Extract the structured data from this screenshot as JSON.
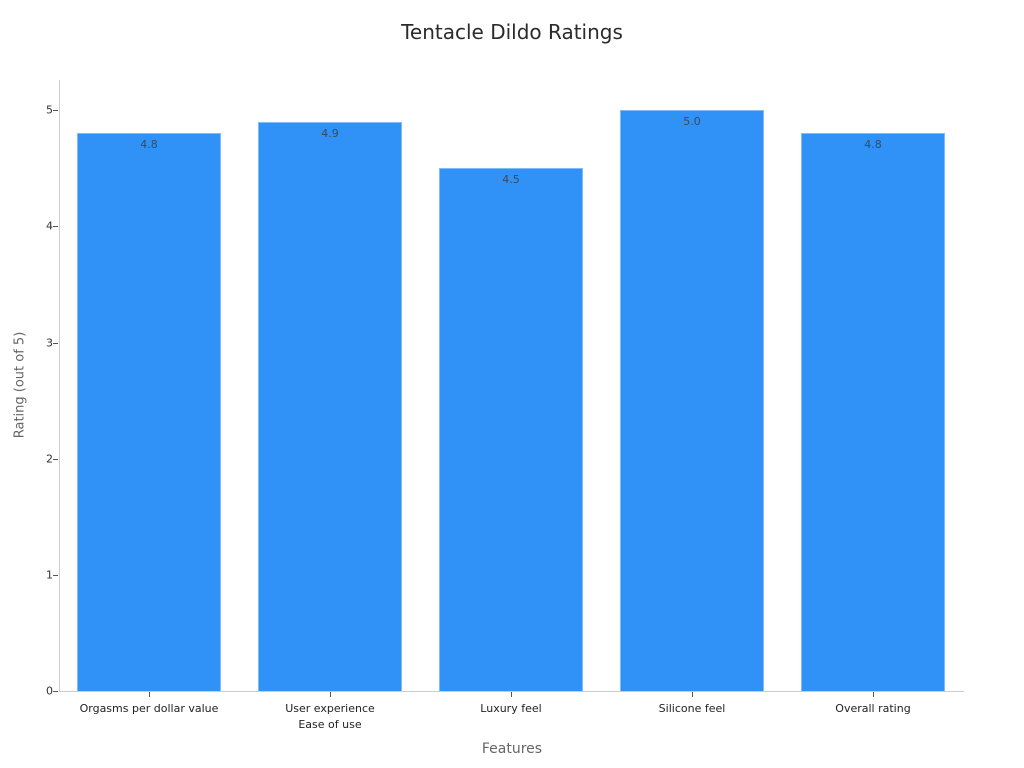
{
  "chart_data": {
    "type": "bar",
    "title": "Tentacle Dildo Ratings",
    "xlabel": "Features",
    "ylabel": "Rating (out of 5)",
    "categories": [
      "Orgasms per dollar value",
      "User experience\nEase of use",
      "Luxury feel",
      "Silicone feel",
      "Overall rating"
    ],
    "values": [
      4.8,
      4.9,
      4.5,
      5.0,
      4.8
    ],
    "value_labels": [
      "4.8",
      "4.9",
      "4.5",
      "5.0",
      "4.8"
    ],
    "ylim": [
      0,
      5.26
    ],
    "yticks": [
      0,
      1,
      2,
      3,
      4,
      5
    ],
    "grid": false,
    "legend": null,
    "bar_color": "#3092f7"
  }
}
